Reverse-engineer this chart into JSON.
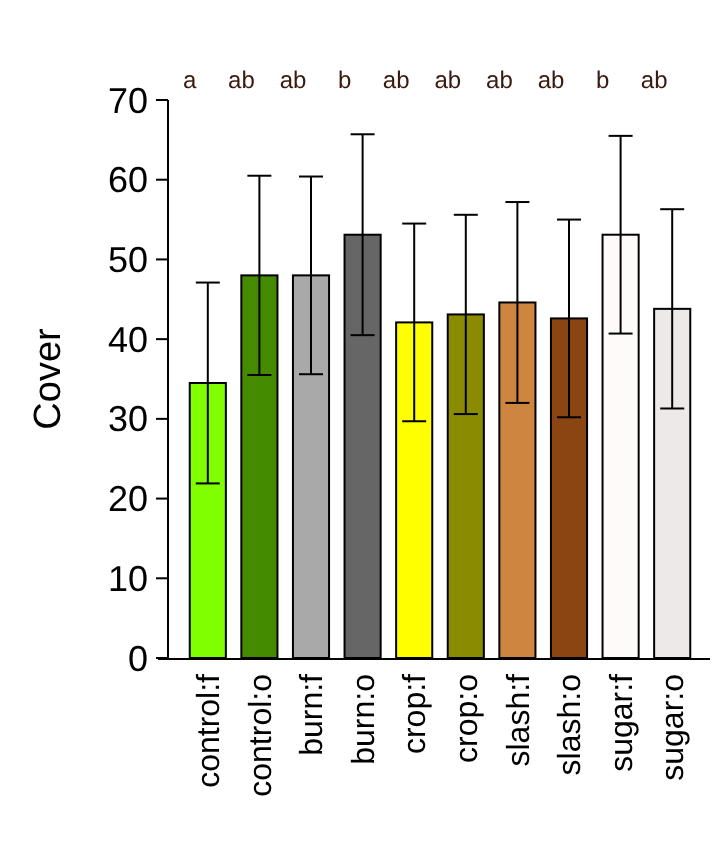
{
  "chart_data": {
    "type": "bar",
    "ylabel": "Cover",
    "categories": [
      "control:f",
      "control:o",
      "burn:f",
      "burn:o",
      "crop:f",
      "crop:o",
      "slash:f",
      "slash:o",
      "sugar:f",
      "sugar:o"
    ],
    "values": [
      34.5,
      48,
      48,
      53.1,
      42.1,
      43.1,
      44.6,
      42.6,
      53.1,
      43.8
    ],
    "errors": [
      12.6,
      12.5,
      12.4,
      12.6,
      12.4,
      12.5,
      12.6,
      12.4,
      12.4,
      12.5
    ],
    "colors": [
      "#7fff00",
      "#458b00",
      "#a9a9a9",
      "#666666",
      "#ffff00",
      "#8b8b00",
      "#cd853f",
      "#8b4513",
      "#fffafa",
      "#eee9e9"
    ],
    "ylim": [
      0,
      70
    ],
    "yticks": [
      0,
      10,
      20,
      30,
      40,
      50,
      60,
      70
    ],
    "annotations": [
      "a",
      "ab",
      "ab",
      "b",
      "ab",
      "ab",
      "ab",
      "ab",
      "b",
      "ab"
    ]
  }
}
